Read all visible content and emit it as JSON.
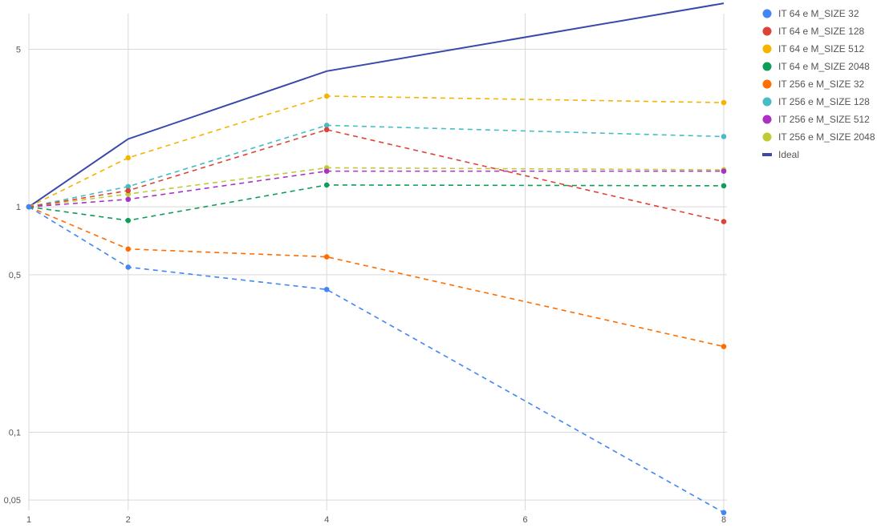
{
  "chart_data": {
    "type": "line",
    "title": "",
    "xlabel": "",
    "ylabel": "",
    "x_scale": "linear",
    "y_scale": "log",
    "xlim": [
      1,
      8
    ],
    "ylim": [
      0.045,
      7.2
    ],
    "x_ticks": [
      1,
      2,
      4,
      6,
      8
    ],
    "x_tick_labels": [
      "1",
      "2",
      "4",
      "6",
      "8"
    ],
    "y_ticks": [
      0.05,
      0.1,
      0.5,
      1,
      5
    ],
    "y_tick_labels": [
      "0,05",
      "0,1",
      "0,5",
      "1",
      "5"
    ],
    "grid": true,
    "legend_position": "right",
    "x": [
      1,
      2,
      4,
      8
    ],
    "series": [
      {
        "name": "IT 64 e M_SIZE 32",
        "color": "#4285f4",
        "style": "dashed",
        "markers": true,
        "values": [
          1,
          0.54,
          0.43,
          0.044
        ]
      },
      {
        "name": "IT 64 e M_SIZE 128",
        "color": "#db4437",
        "style": "dashed",
        "markers": true,
        "values": [
          1,
          1.18,
          2.2,
          0.86
        ]
      },
      {
        "name": "IT 64 e M_SIZE 512",
        "color": "#f4b400",
        "style": "dashed",
        "markers": true,
        "values": [
          1,
          1.65,
          3.1,
          2.9
        ]
      },
      {
        "name": "IT 64 e M_SIZE 2048",
        "color": "#0f9d58",
        "style": "dashed",
        "markers": true,
        "values": [
          1,
          0.87,
          1.25,
          1.24
        ]
      },
      {
        "name": "IT 256 e M_SIZE 32",
        "color": "#ff6d00",
        "style": "dashed",
        "markers": true,
        "values": [
          1,
          0.65,
          0.6,
          0.24
        ]
      },
      {
        "name": "IT 256 e M_SIZE 128",
        "color": "#46bdc6",
        "style": "dashed",
        "markers": true,
        "values": [
          1,
          1.23,
          2.3,
          2.05
        ]
      },
      {
        "name": "IT 256 e M_SIZE 512",
        "color": "#ab30c4",
        "style": "dashed",
        "markers": true,
        "values": [
          1,
          1.08,
          1.44,
          1.44
        ]
      },
      {
        "name": "IT 256 e M_SIZE 2048",
        "color": "#c0ca33",
        "style": "dashed",
        "markers": true,
        "values": [
          1,
          1.14,
          1.49,
          1.46
        ]
      },
      {
        "name": "Ideal",
        "color": "#3949ab",
        "style": "solid",
        "markers": false,
        "values": [
          1,
          2,
          4,
          8
        ]
      }
    ]
  }
}
